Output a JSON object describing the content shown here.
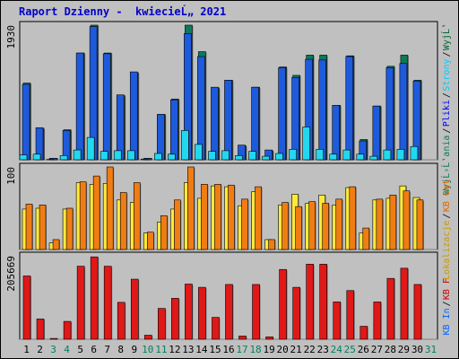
{
  "title": "Raport Dzienny -  kwiecieĹ„ 2021",
  "colors": {
    "background": "#c0c0c0",
    "panel": "#c0c0c0",
    "title": "#0000cc",
    "day_weekday": "#000000",
    "day_weekend": "#008060",
    "wyjscia": "#0a7a5a",
    "strony": "#00ccff",
    "pliki": "#0000ff",
    "wyslane": "#006633",
    "hits_bar": "#1e5adc",
    "pages_bar": "#22d8f0",
    "kbout_bar": "#f07d14",
    "lokalizacje_bar": "#ffea3a",
    "kbout_label": "#dd6600",
    "lokalizacje_label": "#cc9900",
    "kbin_label": "#0066ff",
    "kbf_label": "#cc0000",
    "kbf_bar": "#e01818"
  },
  "chart_data": [
    {
      "type": "bar",
      "panel": "top",
      "ymax_label": "1930",
      "ylim": [
        0,
        1930
      ],
      "categories": [
        "1",
        "2",
        "3",
        "4",
        "5",
        "6",
        "7",
        "8",
        "9",
        "10",
        "11",
        "12",
        "13",
        "14",
        "15",
        "16",
        "17",
        "18",
        "19",
        "20",
        "21",
        "22",
        "23",
        "24",
        "25",
        "26",
        "27",
        "28",
        "29",
        "30",
        "31"
      ],
      "weekend_days": [
        "3",
        "4",
        "10",
        "11",
        "17",
        "18",
        "24",
        "25",
        "31"
      ],
      "right_labels": [
        {
          "text": "WyjĹ‛a",
          "color_key": "wyslane"
        },
        {
          "text": "Strony",
          "color_key": "strony"
        },
        {
          "text": "Pliki",
          "color_key": "pliki"
        },
        {
          "text": "WyjĹ›Ĺ‛",
          "color_key": "wyjscia"
        }
      ],
      "series": [
        {
          "name": "WyjĹ‛a",
          "color_key": "wyjscia",
          "values": [
            1100,
            450,
            20,
            430,
            1530,
            1930,
            1530,
            920,
            1250,
            20,
            650,
            870,
            1930,
            1550,
            1030,
            1140,
            200,
            1040,
            130,
            1330,
            1210,
            1500,
            1500,
            780,
            1490,
            290,
            770,
            1340,
            1500,
            1140,
            0
          ]
        },
        {
          "name": "Pliki",
          "color_key": "hits_bar",
          "values": [
            1080,
            460,
            20,
            420,
            1530,
            1910,
            1520,
            930,
            1260,
            20,
            650,
            860,
            1810,
            1480,
            1040,
            1140,
            210,
            1040,
            140,
            1320,
            1180,
            1440,
            1430,
            780,
            1480,
            270,
            770,
            1320,
            1380,
            1130,
            0
          ]
        },
        {
          "name": "Strony",
          "color_key": "pages_bar",
          "values": [
            70,
            80,
            5,
            60,
            140,
            320,
            120,
            130,
            130,
            10,
            90,
            80,
            420,
            220,
            120,
            130,
            60,
            120,
            50,
            90,
            150,
            470,
            150,
            80,
            140,
            80,
            50,
            140,
            150,
            190,
            0
          ]
        }
      ]
    },
    {
      "type": "bar",
      "panel": "middle",
      "ymax_label": "100",
      "ylim": [
        0,
        100
      ],
      "categories": [
        "1",
        "2",
        "3",
        "4",
        "5",
        "6",
        "7",
        "8",
        "9",
        "10",
        "11",
        "12",
        "13",
        "14",
        "15",
        "16",
        "17",
        "18",
        "19",
        "20",
        "21",
        "22",
        "23",
        "24",
        "25",
        "26",
        "27",
        "28",
        "29",
        "30",
        "31"
      ],
      "series": [
        {
          "name": "Lokalizacje",
          "color_key": "lokalizacje_bar",
          "values": [
            49,
            50,
            8,
            49,
            81,
            79,
            80,
            60,
            57,
            20,
            33,
            49,
            81,
            62,
            77,
            76,
            53,
            70,
            12,
            54,
            67,
            56,
            66,
            54,
            75,
            20,
            60,
            62,
            77,
            63,
            0
          ]
        },
        {
          "name": "KB Out",
          "color_key": "kbout_bar",
          "values": [
            55,
            54,
            12,
            50,
            82,
            89,
            100,
            69,
            81,
            21,
            41,
            60,
            100,
            79,
            79,
            78,
            61,
            76,
            12,
            57,
            52,
            58,
            56,
            61,
            76,
            26,
            61,
            66,
            71,
            60,
            0
          ]
        }
      ]
    },
    {
      "type": "bar",
      "panel": "bottom",
      "ymax_label": "205669",
      "ylim": [
        0,
        205669
      ],
      "categories": [
        "1",
        "2",
        "3",
        "4",
        "5",
        "6",
        "7",
        "8",
        "9",
        "10",
        "11",
        "12",
        "13",
        "14",
        "15",
        "16",
        "17",
        "18",
        "19",
        "20",
        "21",
        "22",
        "23",
        "24",
        "25",
        "26",
        "27",
        "28",
        "29",
        "30",
        "31"
      ],
      "series": [
        {
          "name": "KB F",
          "color_key": "kbf_bar",
          "values": [
            156000,
            50000,
            2000,
            44000,
            180000,
            203000,
            180000,
            91000,
            148000,
            10000,
            76000,
            101000,
            136000,
            128000,
            54000,
            135000,
            8000,
            135000,
            6000,
            172000,
            128000,
            185000,
            185000,
            92000,
            120000,
            32000,
            92000,
            150000,
            175000,
            135000,
            0
          ]
        }
      ]
    }
  ],
  "x_axis": {
    "day_labels": [
      "1",
      "2",
      "3",
      "4",
      "5",
      "6",
      "7",
      "8",
      "9",
      "10",
      "11",
      "12",
      "13",
      "14",
      "15",
      "16",
      "17",
      "18",
      "19",
      "20",
      "21",
      "22",
      "23",
      "24",
      "25",
      "26",
      "27",
      "28",
      "29",
      "30",
      "31"
    ]
  },
  "right_axis": {
    "top": [
      {
        "text": "WyjĹ‛",
        "color_key": "wyslane"
      },
      {
        "text": "Strony",
        "color_key": "strony"
      },
      {
        "text": "Pliki",
        "color_key": "pliki"
      },
      {
        "text": "WyjĹ›Ĺ‛ania",
        "color_key": "wyjscia"
      }
    ],
    "middle": [
      {
        "text": "KB Out",
        "color_key": "kbout_label"
      },
      {
        "text": "Lokalizacje",
        "color_key": "lokalizacje_label"
      }
    ],
    "bottom": [
      {
        "text": "KB F",
        "color_key": "kbf_label"
      },
      {
        "text": "KB In",
        "color_key": "kbin_label"
      }
    ]
  }
}
